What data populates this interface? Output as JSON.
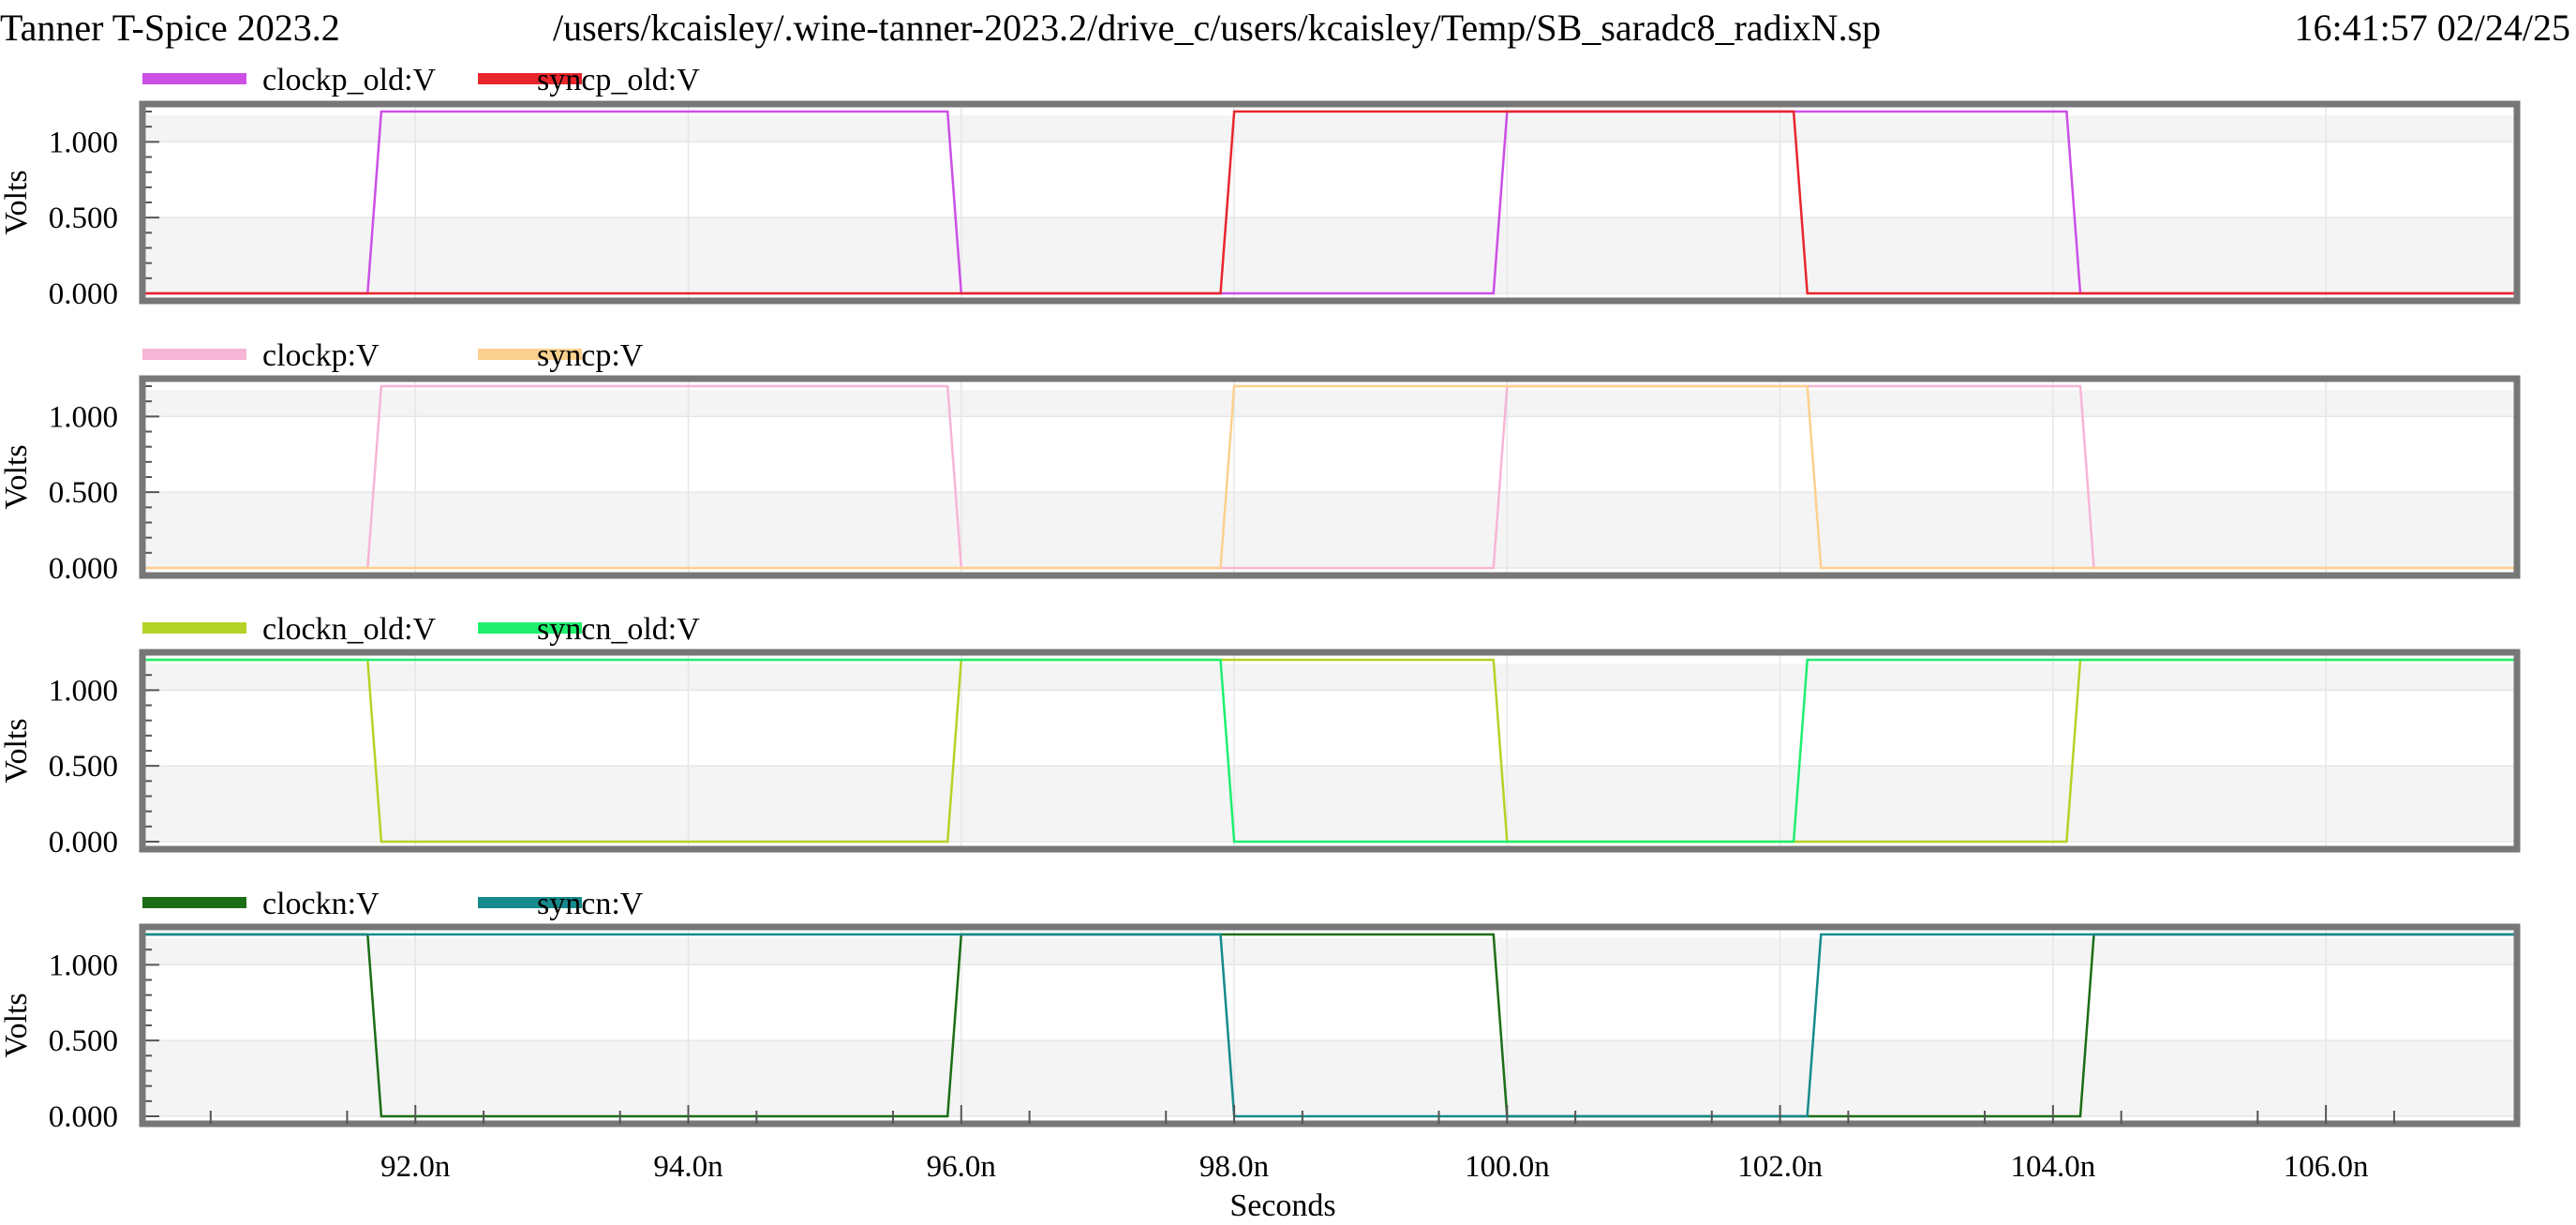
{
  "header": {
    "app_title": "Tanner T-Spice 2023.2",
    "file_path": "/users/kcaisley/.wine-tanner-2023.2/drive_c/users/kcaisley/Temp/SB_saradc8_radixN.sp",
    "timestamp": "16:41:57 02/24/25"
  },
  "chart_data": [
    {
      "type": "line",
      "ylabel": "Volts",
      "xlim": [
        90.0,
        107.4
      ],
      "ylim": [
        0.0,
        1.2
      ],
      "yticks": [
        "0.000",
        "0.500",
        "1.000"
      ],
      "grid": true,
      "legend_placement": "top-left",
      "series": [
        {
          "name": "clockp_old:V",
          "color": "#cc4fe6",
          "x": [
            90.0,
            91.65,
            91.75,
            95.9,
            96.0,
            99.9,
            100.0,
            104.1,
            104.2,
            107.4
          ],
          "y": [
            0,
            0,
            1.2,
            1.2,
            0,
            0,
            1.2,
            1.2,
            0,
            0
          ]
        },
        {
          "name": "syncp_old:V",
          "color": "#e8262c",
          "x": [
            90.0,
            97.9,
            98.0,
            102.1,
            102.2,
            107.4
          ],
          "y": [
            0,
            0,
            1.2,
            1.2,
            0,
            0
          ]
        }
      ]
    },
    {
      "type": "line",
      "ylabel": "Volts",
      "xlim": [
        90.0,
        107.4
      ],
      "ylim": [
        0.0,
        1.2
      ],
      "yticks": [
        "0.000",
        "0.500",
        "1.000"
      ],
      "grid": true,
      "legend_placement": "top-left",
      "series": [
        {
          "name": "clockp:V",
          "color": "#f7b5d5",
          "x": [
            90.0,
            91.65,
            91.75,
            95.9,
            96.0,
            99.9,
            100.0,
            104.2,
            104.3,
            107.4
          ],
          "y": [
            0,
            0,
            1.2,
            1.2,
            0,
            0,
            1.2,
            1.2,
            0,
            0
          ]
        },
        {
          "name": "syncp:V",
          "color": "#fcd08e",
          "x": [
            90.0,
            97.9,
            98.0,
            102.2,
            102.3,
            107.4
          ],
          "y": [
            0,
            0,
            1.2,
            1.2,
            0,
            0
          ]
        }
      ]
    },
    {
      "type": "line",
      "ylabel": "Volts",
      "xlim": [
        90.0,
        107.4
      ],
      "ylim": [
        0.0,
        1.2
      ],
      "yticks": [
        "0.000",
        "0.500",
        "1.000"
      ],
      "grid": true,
      "legend_placement": "top-left",
      "series": [
        {
          "name": "clockn_old:V",
          "color": "#b5d327",
          "x": [
            90.0,
            91.65,
            91.75,
            95.9,
            96.0,
            99.9,
            100.0,
            104.1,
            104.2,
            107.4
          ],
          "y": [
            1.2,
            1.2,
            0,
            0,
            1.2,
            1.2,
            0,
            0,
            1.2,
            1.2
          ]
        },
        {
          "name": "syncn_old:V",
          "color": "#1fef6e",
          "x": [
            90.0,
            97.9,
            98.0,
            102.1,
            102.2,
            107.4
          ],
          "y": [
            1.2,
            1.2,
            0,
            0,
            1.2,
            1.2
          ]
        }
      ]
    },
    {
      "type": "line",
      "ylabel": "Volts",
      "xlabel": "Seconds",
      "xlim": [
        90.0,
        107.4
      ],
      "ylim": [
        0.0,
        1.2
      ],
      "yticks": [
        "0.000",
        "0.500",
        "1.000"
      ],
      "xticks": [
        "92.0n",
        "94.0n",
        "96.0n",
        "98.0n",
        "100.0n",
        "102.0n",
        "104.0n",
        "106.0n"
      ],
      "grid": true,
      "legend_placement": "top-left",
      "series": [
        {
          "name": "clockn:V",
          "color": "#1b6e15",
          "x": [
            90.0,
            91.65,
            91.75,
            95.9,
            96.0,
            99.9,
            100.0,
            104.2,
            104.3,
            107.4
          ],
          "y": [
            1.2,
            1.2,
            0,
            0,
            1.2,
            1.2,
            0,
            0,
            1.2,
            1.2
          ]
        },
        {
          "name": "syncn:V",
          "color": "#168a8c",
          "x": [
            90.0,
            97.9,
            98.0,
            102.2,
            102.3,
            107.4
          ],
          "y": [
            1.2,
            1.2,
            0,
            0,
            1.2,
            1.2
          ]
        }
      ]
    }
  ]
}
